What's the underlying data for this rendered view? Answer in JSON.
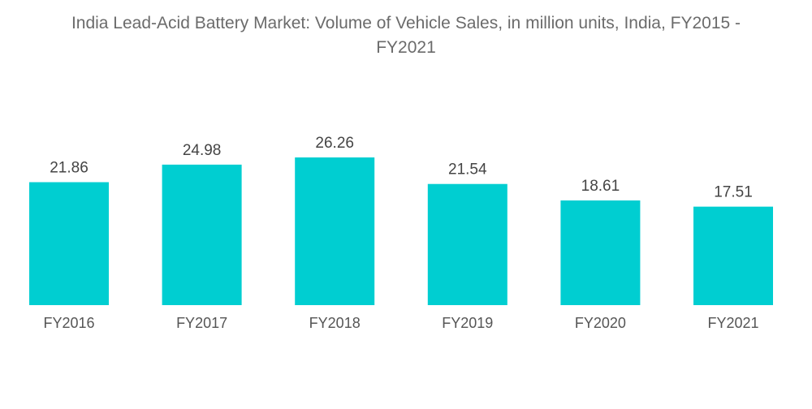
{
  "chart_data": {
    "type": "bar",
    "title_lines": [
      "India Lead-Acid Battery Market: Volume of Vehicle Sales, in million units, India, FY2015 -",
      "FY2021"
    ],
    "title": "India Lead-Acid Battery Market: Volume of Vehicle Sales, in million units, India, FY2015 - FY2021",
    "categories": [
      "FY2016",
      "FY2017",
      "FY2018",
      "FY2019",
      "FY2020",
      "FY2021"
    ],
    "values": [
      21.86,
      24.98,
      26.26,
      21.54,
      18.61,
      17.51
    ],
    "data_labels": [
      "21.86",
      "24.98",
      "26.26",
      "21.54",
      "18.61",
      "17.51"
    ],
    "xlabel": "",
    "ylabel": "",
    "ylim": [
      0,
      26.26
    ],
    "grid": false,
    "legend": "none",
    "bar_color": "#00CED1"
  }
}
